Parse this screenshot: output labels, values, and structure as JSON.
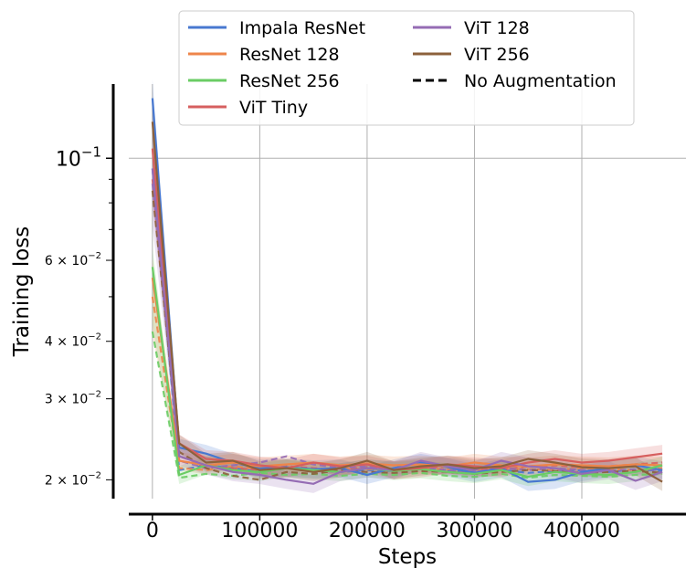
{
  "chart_data": {
    "type": "line",
    "xlabel": "Steps",
    "ylabel": "Training loss",
    "yscale": "log",
    "xlim": [
      -22000,
      497000
    ],
    "ylim": [
      0.0182,
      0.145
    ],
    "x_ticks": [
      {
        "value": 0,
        "label": "0"
      },
      {
        "value": 100000,
        "label": "100000"
      },
      {
        "value": 200000,
        "label": "200000"
      },
      {
        "value": 300000,
        "label": "300000"
      },
      {
        "value": 400000,
        "label": "400000"
      }
    ],
    "y_ticks": [
      {
        "value": 0.1,
        "label": "10",
        "exp": "−1",
        "major": true
      },
      {
        "value": 0.06,
        "label": "6 × 10",
        "exp": "−2",
        "major": false
      },
      {
        "value": 0.04,
        "label": "4 × 10",
        "exp": "−2",
        "major": false
      },
      {
        "value": 0.03,
        "label": "3 × 10",
        "exp": "−2",
        "major": false
      },
      {
        "value": 0.02,
        "label": "2 × 10",
        "exp": "−2",
        "major": false
      }
    ],
    "y_minor_ticks": [
      0.05,
      0.07,
      0.08,
      0.09
    ],
    "x": [
      0,
      25000,
      50000,
      75000,
      100000,
      125000,
      150000,
      175000,
      200000,
      225000,
      250000,
      275000,
      300000,
      325000,
      350000,
      375000,
      400000,
      425000,
      450000,
      475000
    ],
    "series": [
      {
        "name": "Impala ResNet",
        "color": "#4878d0",
        "values": [
          0.135,
          0.0235,
          0.0228,
          0.0218,
          0.0212,
          0.0213,
          0.0211,
          0.0212,
          0.0205,
          0.0212,
          0.0218,
          0.0213,
          0.0207,
          0.0212,
          0.0198,
          0.02,
          0.0208,
          0.0212,
          0.0215,
          0.021
        ],
        "no_aug": [
          0.095,
          0.021,
          0.0215,
          0.0212,
          0.0208,
          0.0212,
          0.021,
          0.0208,
          0.021,
          0.0209,
          0.0212,
          0.021,
          0.0208,
          0.021,
          0.0207,
          0.0209,
          0.021,
          0.0208,
          0.0211,
          0.0209
        ]
      },
      {
        "name": "ResNet 128",
        "color": "#ee854a",
        "values": [
          0.055,
          0.022,
          0.0215,
          0.0218,
          0.0214,
          0.0216,
          0.0218,
          0.0215,
          0.0217,
          0.0215,
          0.0216,
          0.0214,
          0.0218,
          0.0215,
          0.0214,
          0.0216,
          0.0215,
          0.0214,
          0.0216,
          0.0215
        ],
        "no_aug": [
          0.05,
          0.0212,
          0.021,
          0.0214,
          0.0211,
          0.0213,
          0.021,
          0.0212,
          0.0211,
          0.021,
          0.0212,
          0.0211,
          0.021,
          0.0212,
          0.0211,
          0.021,
          0.0212,
          0.0211,
          0.021,
          0.0212
        ]
      },
      {
        "name": "ResNet 256",
        "color": "#6acc64",
        "values": [
          0.058,
          0.0205,
          0.0215,
          0.021,
          0.0208,
          0.0212,
          0.021,
          0.0208,
          0.0212,
          0.0209,
          0.0211,
          0.0208,
          0.0206,
          0.021,
          0.0203,
          0.0208,
          0.0206,
          0.0205,
          0.0208,
          0.0215
        ],
        "no_aug": [
          0.042,
          0.0202,
          0.0206,
          0.0204,
          0.0207,
          0.0205,
          0.0206,
          0.0204,
          0.0206,
          0.0205,
          0.0207,
          0.0204,
          0.0203,
          0.0206,
          0.0202,
          0.0205,
          0.0204,
          0.0203,
          0.0205,
          0.0206
        ]
      },
      {
        "name": "ViT Tiny",
        "color": "#d65f5f",
        "values": [
          0.105,
          0.024,
          0.0222,
          0.022,
          0.0215,
          0.0212,
          0.0218,
          0.0214,
          0.0216,
          0.021,
          0.0212,
          0.0216,
          0.0214,
          0.0212,
          0.0218,
          0.0222,
          0.0218,
          0.022,
          0.0224,
          0.0228
        ],
        "no_aug": [
          0.09,
          0.0225,
          0.0215,
          0.0212,
          0.021,
          0.0214,
          0.0212,
          0.021,
          0.0213,
          0.0211,
          0.0212,
          0.0214,
          0.0212,
          0.021,
          0.0214,
          0.0215,
          0.0213,
          0.0214,
          0.0216,
          0.0218
        ]
      },
      {
        "name": "ViT 128",
        "color": "#956cb4",
        "values": [
          0.095,
          0.0225,
          0.0215,
          0.0208,
          0.0205,
          0.02,
          0.0196,
          0.0208,
          0.0212,
          0.021,
          0.022,
          0.0214,
          0.021,
          0.022,
          0.0214,
          0.0212,
          0.0206,
          0.021,
          0.0199,
          0.0208
        ],
        "no_aug": [
          0.088,
          0.022,
          0.0212,
          0.0215,
          0.0218,
          0.0225,
          0.0216,
          0.0212,
          0.0214,
          0.021,
          0.0212,
          0.021,
          0.0208,
          0.0212,
          0.021,
          0.0212,
          0.021,
          0.0209,
          0.0211,
          0.021
        ]
      },
      {
        "name": "ViT 256",
        "color": "#8c613c",
        "values": [
          0.12,
          0.024,
          0.0218,
          0.022,
          0.021,
          0.0212,
          0.0208,
          0.0212,
          0.022,
          0.021,
          0.0214,
          0.0216,
          0.0212,
          0.0214,
          0.0222,
          0.0218,
          0.0213,
          0.0212,
          0.0214,
          0.0198
        ],
        "no_aug": [
          0.085,
          0.023,
          0.0212,
          0.0204,
          0.02,
          0.0208,
          0.0206,
          0.021,
          0.0208,
          0.0207,
          0.0209,
          0.0208,
          0.0206,
          0.0208,
          0.021,
          0.0209,
          0.0207,
          0.0208,
          0.0209,
          0.0207
        ]
      }
    ],
    "legend": {
      "location": "top-center",
      "columns": 2,
      "entries": [
        {
          "label": "Impala ResNet",
          "color": "#4878d0",
          "style": "solid"
        },
        {
          "label": "ResNet 128",
          "color": "#ee854a",
          "style": "solid"
        },
        {
          "label": "ResNet 256",
          "color": "#6acc64",
          "style": "solid"
        },
        {
          "label": "ViT Tiny",
          "color": "#d65f5f",
          "style": "solid"
        },
        {
          "label": "ViT 128",
          "color": "#956cb4",
          "style": "solid"
        },
        {
          "label": "ViT 256",
          "color": "#8c613c",
          "style": "solid"
        },
        {
          "label": "No Augmentation",
          "color": "#000000",
          "style": "dashed"
        }
      ]
    },
    "grid": true,
    "band": "shaded spread around each solid series"
  }
}
